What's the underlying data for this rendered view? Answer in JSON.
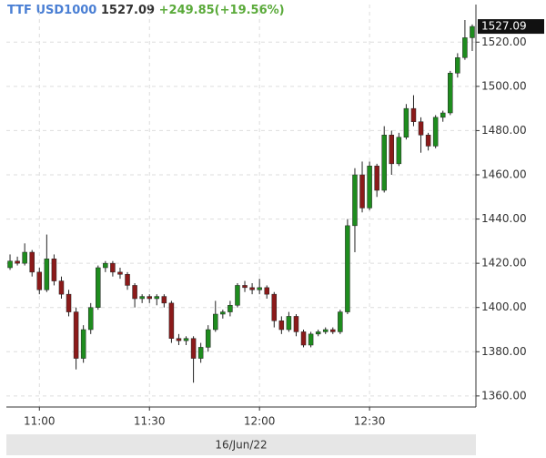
{
  "chart_data": {
    "type": "candlestick",
    "title": "TTF USD1000",
    "change": "+249.85(+19.56%)",
    "x": [
      "10:52",
      "10:54",
      "10:56",
      "10:58",
      "11:00",
      "11:02",
      "11:04",
      "11:06",
      "11:08",
      "11:10",
      "11:12",
      "11:14",
      "11:16",
      "11:18",
      "11:20",
      "11:22",
      "11:24",
      "11:26",
      "11:28",
      "11:30",
      "11:32",
      "11:34",
      "11:36",
      "11:38",
      "11:40",
      "11:42",
      "11:44",
      "11:46",
      "11:48",
      "11:50",
      "11:52",
      "11:54",
      "11:56",
      "11:58",
      "12:00",
      "12:02",
      "12:04",
      "12:06",
      "12:08",
      "12:10",
      "12:12",
      "12:14",
      "12:16",
      "12:18",
      "12:20",
      "12:22",
      "12:24",
      "12:26",
      "12:28",
      "12:30",
      "12:32",
      "12:34",
      "12:36",
      "12:38",
      "12:40",
      "12:42",
      "12:44",
      "12:46",
      "12:48",
      "12:50",
      "12:52",
      "12:54",
      "12:56",
      "12:58"
    ],
    "open": [
      1418,
      1421,
      1420,
      1425,
      1416,
      1408,
      1422,
      1412,
      1406,
      1398,
      1377,
      1390,
      1400,
      1418,
      1420,
      1416,
      1415,
      1410,
      1404,
      1405,
      1404,
      1405,
      1402,
      1386,
      1385,
      1386,
      1377,
      1382,
      1390,
      1397,
      1398,
      1401,
      1410,
      1409,
      1408,
      1409,
      1406,
      1394,
      1390,
      1396,
      1389,
      1383,
      1388,
      1389,
      1390,
      1389,
      1398,
      1437,
      1460,
      1445,
      1464,
      1453,
      1478,
      1465,
      1477,
      1490,
      1484,
      1478,
      1473,
      1486,
      1488,
      1506,
      1513,
      1522
    ],
    "high": [
      1424,
      1423,
      1429,
      1426,
      1418,
      1433,
      1424,
      1414,
      1408,
      1400,
      1392,
      1402,
      1419,
      1421,
      1421,
      1418,
      1416,
      1411,
      1406,
      1406,
      1406,
      1406,
      1403,
      1388,
      1387,
      1387,
      1384,
      1392,
      1403,
      1399,
      1403,
      1411,
      1412,
      1411,
      1413,
      1410,
      1407,
      1396,
      1398,
      1397,
      1390,
      1389,
      1390,
      1391,
      1391,
      1399,
      1440,
      1463,
      1466,
      1466,
      1465,
      1482,
      1480,
      1479,
      1492,
      1496,
      1486,
      1479,
      1487,
      1489,
      1507,
      1515,
      1530,
      1528
    ],
    "low": [
      1417,
      1419,
      1419,
      1414,
      1406,
      1407,
      1410,
      1404,
      1396,
      1372,
      1375,
      1388,
      1399,
      1416,
      1414,
      1413,
      1408,
      1400,
      1402,
      1402,
      1401,
      1400,
      1384,
      1383,
      1383,
      1366,
      1375,
      1380,
      1389,
      1395,
      1396,
      1400,
      1407,
      1406,
      1406,
      1404,
      1391,
      1388,
      1389,
      1387,
      1382,
      1382,
      1387,
      1388,
      1388,
      1388,
      1397,
      1425,
      1443,
      1444,
      1450,
      1452,
      1460,
      1464,
      1476,
      1482,
      1470,
      1471,
      1472,
      1484,
      1487,
      1504,
      1512,
      1516
    ],
    "close": [
      1421,
      1420,
      1425,
      1416,
      1408,
      1422,
      1412,
      1406,
      1398,
      1377,
      1390,
      1400,
      1418,
      1420,
      1416,
      1415,
      1410,
      1404,
      1405,
      1404,
      1405,
      1402,
      1386,
      1385,
      1386,
      1377,
      1382,
      1390,
      1397,
      1398,
      1401,
      1410,
      1409,
      1408,
      1409,
      1406,
      1394,
      1390,
      1396,
      1389,
      1383,
      1388,
      1389,
      1390,
      1389,
      1398,
      1437,
      1460,
      1445,
      1464,
      1453,
      1478,
      1465,
      1477,
      1490,
      1484,
      1478,
      1473,
      1486,
      1488,
      1506,
      1513,
      1522,
      1527.09
    ],
    "up_color": "#1e8c1e",
    "down_color": "#8b1a1a",
    "xlim": [
      "10:51",
      "12:59"
    ],
    "xticks": [
      "11:00",
      "11:30",
      "12:00",
      "12:30"
    ],
    "ylim": [
      1355,
      1537
    ],
    "yticks": [
      {
        "value": 1360,
        "label": "1360.00"
      },
      {
        "value": 1380,
        "label": "1380.00"
      },
      {
        "value": 1400,
        "label": "1400.00"
      },
      {
        "value": 1420,
        "label": "1420.00"
      },
      {
        "value": 1440,
        "label": "1440.00"
      },
      {
        "value": 1460,
        "label": "1460.00"
      },
      {
        "value": 1480,
        "label": "1480.00"
      },
      {
        "value": 1500,
        "label": "1500.00"
      },
      {
        "value": 1520,
        "label": "1520.00"
      }
    ],
    "grid": true,
    "date_label": "16/Jun/22"
  }
}
